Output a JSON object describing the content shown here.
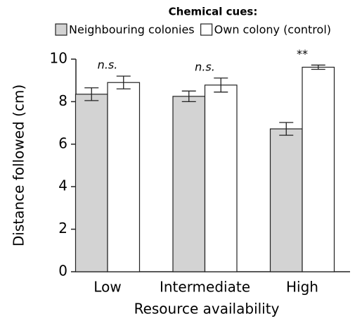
{
  "chart_data": {
    "type": "bar",
    "legend_title": "Chemical cues:",
    "categories": [
      "Low",
      "Intermediate",
      "High"
    ],
    "series": [
      {
        "name": "Neighbouring colonies",
        "color": "#d3d3d3",
        "values": [
          8.35,
          8.25,
          6.72
        ],
        "errors": [
          0.3,
          0.25,
          0.3
        ]
      },
      {
        "name": "Own colony (control)",
        "color": "#ffffff",
        "values": [
          8.9,
          8.78,
          9.62
        ],
        "errors": [
          0.3,
          0.33,
          0.1
        ]
      }
    ],
    "annotations": [
      "n.s.",
      "n.s.",
      "**"
    ],
    "xlabel": "Resource availability",
    "ylabel": "Distance followed (cm)",
    "ylim": [
      0,
      10
    ],
    "yticks": [
      0,
      2,
      4,
      6,
      8,
      10
    ],
    "legend": "top"
  }
}
